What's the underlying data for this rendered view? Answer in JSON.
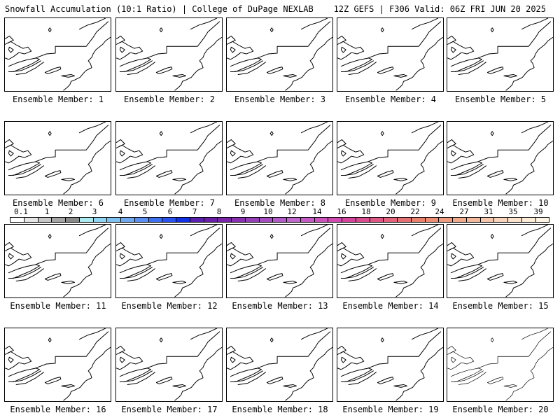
{
  "header": {
    "left_title": "Snowfall Accumulation (10:1 Ratio) | College of DuPage NEXLAB",
    "right_title": "12Z GEFS | F306 Valid: 06Z FRI JUN 20 2025"
  },
  "panels": [
    {
      "caption": "Ensemble Member: 1"
    },
    {
      "caption": "Ensemble Member: 2"
    },
    {
      "caption": "Ensemble Member: 3"
    },
    {
      "caption": "Ensemble Member: 4"
    },
    {
      "caption": "Ensemble Member: 5"
    },
    {
      "caption": "Ensemble Member: 6"
    },
    {
      "caption": "Ensemble Member: 7"
    },
    {
      "caption": "Ensemble Member: 8"
    },
    {
      "caption": "Ensemble Member: 9"
    },
    {
      "caption": "Ensemble Member: 10"
    },
    {
      "caption": "Ensemble Member: 11"
    },
    {
      "caption": "Ensemble Member: 12"
    },
    {
      "caption": "Ensemble Member: 13"
    },
    {
      "caption": "Ensemble Member: 14"
    },
    {
      "caption": "Ensemble Member: 15"
    },
    {
      "caption": "Ensemble Member: 16"
    },
    {
      "caption": "Ensemble Member: 17"
    },
    {
      "caption": "Ensemble Member: 18"
    },
    {
      "caption": "Ensemble Member: 19"
    },
    {
      "caption": "Ensemble Member: 20"
    }
  ],
  "colorbar": {
    "labels": [
      "0.1",
      "1",
      "2",
      "3",
      "4",
      "5",
      "6",
      "7",
      "8",
      "9",
      "10",
      "12",
      "14",
      "16",
      "18",
      "20",
      "22",
      "24",
      "27",
      "31",
      "35",
      "39"
    ],
    "colors": [
      "#ffffff",
      "#e6e6e6",
      "#c8c8c8",
      "#a6a6a6",
      "#8a8a8a",
      "#a8eaf0",
      "#8fd4f0",
      "#7fc2f2",
      "#6fa8ee",
      "#5a8ef0",
      "#3e70f0",
      "#2a52ee",
      "#1230e6",
      "#5a20b0",
      "#6a1ea8",
      "#7a24a8",
      "#8830b0",
      "#9640b8",
      "#a44cc0",
      "#b25ac8",
      "#c068cc",
      "#c65ac4",
      "#cc52bc",
      "#d14ab2",
      "#d4469c",
      "#d84c90",
      "#de5886",
      "#e2647c",
      "#e47274",
      "#e8806e",
      "#ec8e74",
      "#ef9c80",
      "#f2aa8c",
      "#f4b89c",
      "#f6c6ac",
      "#f8d4bc",
      "#fae2cc",
      "#fcecd8",
      "#fdf4e6"
    ]
  }
}
